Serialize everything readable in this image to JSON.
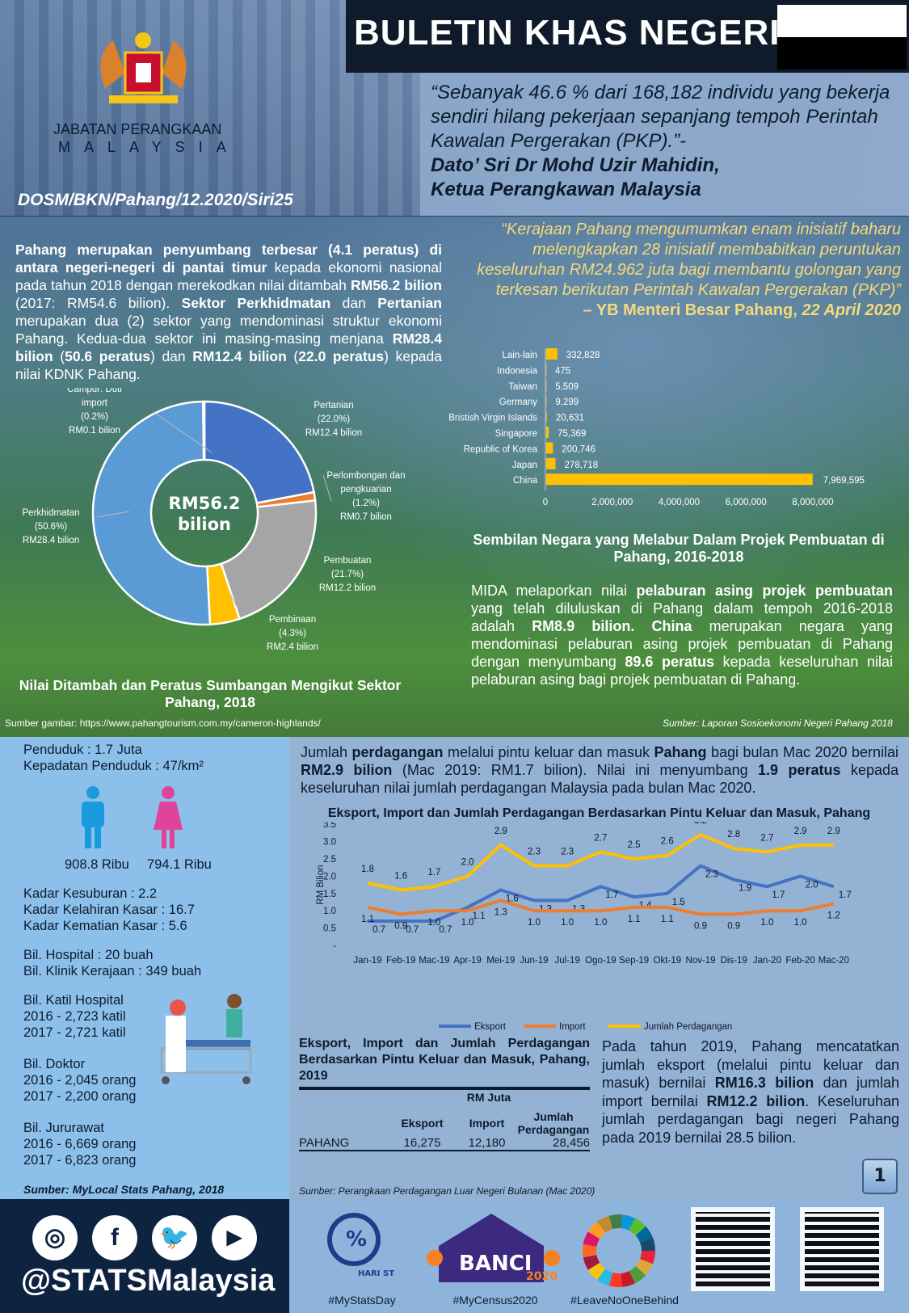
{
  "header": {
    "title": "BULETIN KHAS NEGERI",
    "org_line1": "JABATAN PERANGKAAN",
    "org_line2": "MALAYSIA",
    "code": "DOSM/BKN/Pahang/12.2020/Siri25",
    "quote": "“Sebanyak 46.6 % dari 168,182 individu yang bekerja sendiri hilang pekerjaan sepanjang tempoh Perintah Kawalan Pergerakan (PKP).”-",
    "quote_author": "Dato’ Sri Dr Mohd Uzir Mahidin,",
    "quote_role": "Ketua Perangkawan Malaysia"
  },
  "intro": [
    [
      "Pahang merupakan penyumbang terbesar (4.1 peratus) di antara negeri-negeri di pantai timur",
      1
    ],
    [
      " kepada ekonomi nasional pada tahun 2018 dengan merekodkan nilai ditambah ",
      0
    ],
    [
      "RM56.2 bilion",
      1
    ],
    [
      " (2017: RM54.6 bilion). ",
      0
    ],
    [
      "Sektor Perkhidmatan",
      1
    ],
    [
      " dan ",
      0
    ],
    [
      "Pertanian",
      1
    ],
    [
      " merupakan dua (2) sektor yang mendominasi struktur ekonomi Pahang. Kedua-dua sektor ini masing-masing menjana ",
      0
    ],
    [
      "RM28.4 bilion",
      1
    ],
    [
      " (",
      0
    ],
    [
      "50.6 peratus",
      1
    ],
    [
      ") dan ",
      0
    ],
    [
      "RM12.4 bilion",
      1
    ],
    [
      " (",
      0
    ],
    [
      "22.0 peratus",
      1
    ],
    [
      ") kepada nilai KDNK Pahang.",
      0
    ]
  ],
  "mb_quote": {
    "text": "“Kerajaan Pahang mengumumkan enam inisiatif baharu melengkapkan 28 inisiatif membabitkan peruntukan keseluruhan RM24.962 juta bagi membantu golongan yang terkesan berikutan Perintah Kawalan Pergerakan (PKP)”",
    "author": "– YB Menteri Besar Pahang,",
    "date": " 22 April 2020"
  },
  "mida": [
    [
      "MIDA melaporkan nilai ",
      0
    ],
    [
      "pelaburan asing projek pembuatan",
      1
    ],
    [
      " yang telah diluluskan di Pahang dalam tempoh 2016-2018 adalah ",
      0
    ],
    [
      "RM8.9 bilion. China",
      1
    ],
    [
      " merupakan negara yang mendominasi pelaburan asing projek pembuatan di Pahang dengan menyumbang ",
      0
    ],
    [
      "89.6 peratus",
      1
    ],
    [
      " kepada keseluruhan nilai pelaburan asing bagi projek pembuatan di Pahang.",
      0
    ]
  ],
  "sources": {
    "image": "Sumber gambar: https://www.pahangtourism.com.my/cameron-highlands/",
    "laporan": "Sumber: Laporan Sosioekonomi Negeri Pahang 2018",
    "mylocal": "Sumber: MyLocal Stats Pahang, 2018",
    "trade": "Sumber:  Perangkaan Perdagangan Luar Negeri Bulanan (Mac 2020)"
  },
  "stats": {
    "pop": "Penduduk : 1.7 Juta",
    "density": "Kepadatan Penduduk : 47/km²",
    "male": "908.8 Ribu",
    "female": "794.1 Ribu",
    "fert": [
      "Kadar Kesuburan : 2.2",
      "Kadar Kelahiran Kasar : 16.7",
      "Kadar Kematian Kasar : 5.6"
    ],
    "hosp": [
      "Bil. Hospital : 20 buah",
      "Bil. Klinik Kerajaan : 349 buah"
    ],
    "beds": [
      "Bil. Katil Hospital",
      "2016 - 2,723 katil",
      "2017 - 2,721 katil"
    ],
    "doctors": [
      "Bil. Doktor",
      "2016 - 2,045 orang",
      "2017 - 2,200 orang"
    ],
    "nurses": [
      "Bil. Jururawat",
      "2016 - 6,669 orang",
      "2017 - 6,823 orang"
    ]
  },
  "trade_text": [
    [
      "Jumlah ",
      0
    ],
    [
      "perdagangan",
      1
    ],
    [
      " melalui pintu keluar dan masuk ",
      0
    ],
    [
      "Pahang",
      1
    ],
    [
      " bagi bulan Mac 2020 bernilai ",
      0
    ],
    [
      "RM2.9 bilion",
      1
    ],
    [
      " (Mac 2019: RM1.7 bilion). Nilai ini menyumbang ",
      0
    ],
    [
      "1.9 peratus",
      1
    ],
    [
      " kepada keseluruhan nilai jumlah perdagangan Malaysia pada bulan Mac 2020.",
      0
    ]
  ],
  "trade_2019": [
    [
      "Pada tahun 2019, Pahang mencatatkan jumlah eksport (melalui pintu keluar dan masuk) bernilai ",
      0
    ],
    [
      "RM16.3 bilion",
      1
    ],
    [
      " dan jumlah import bernilai ",
      0
    ],
    [
      "RM12.2 bilion",
      1
    ],
    [
      ". Keseluruhan jumlah perdagangan bagi negeri Pahang pada 2019 bernilai 28.5 bilion.",
      0
    ]
  ],
  "table": {
    "title": "Eksport, Import dan Jumlah Perdagangan Berdasarkan Pintu Keluar dan Masuk, Pahang, 2019",
    "unit": "RM Juta",
    "headers": [
      "",
      "Eksport",
      "Import",
      "Jumlah Perdagangan"
    ],
    "rows": [
      [
        "PAHANG",
        "16,275",
        "12,180",
        "28,456"
      ]
    ]
  },
  "page_number": "1",
  "footer": {
    "handle": "@STATSMalaysia",
    "social": [
      "instagram-icon",
      "facebook-icon",
      "twitter-icon",
      "youtube-icon"
    ],
    "tags": [
      "#MyStatsDay",
      "#MyCensus2020",
      "#LeaveNoOneBehind"
    ],
    "logo_hari": "HARI STATISTIK NEGARA",
    "logo_banci": "BANCI",
    "logo_year": "2020"
  },
  "colors": {
    "blue": "#4472c4",
    "orange": "#ed7d31",
    "grey": "#a5a5a5",
    "yellow": "#ffc000",
    "lightblue": "#5b9bd5",
    "navy": "#0d2340"
  },
  "chart_data": [
    {
      "type": "pie",
      "title": "Nilai Ditambah dan Peratus Sumbangan Mengikut Sektor Pahang, 2018",
      "center_label": "RM56.2 bilion",
      "slices": [
        {
          "label": "Pertanian",
          "pct": "(22.0%)",
          "value_label": "RM12.4 bilion",
          "value": 22.0,
          "color": "#4472c4"
        },
        {
          "label": "Perlombongan dan pengkuarian",
          "pct": "(1.2%)",
          "value_label": "RM0.7 bilion",
          "value": 1.2,
          "color": "#ed7d31"
        },
        {
          "label": "Pembuatan",
          "pct": "(21.7%)",
          "value_label": "RM12.2 bilion",
          "value": 21.7,
          "color": "#a5a5a5"
        },
        {
          "label": "Pembinaan",
          "pct": "(4.3%)",
          "value_label": "RM2.4 bilion",
          "value": 4.3,
          "color": "#ffc000"
        },
        {
          "label": "Perkhidmatan",
          "pct": "(50.6%)",
          "value_label": "RM28.4 bilion",
          "value": 50.6,
          "color": "#5b9bd5"
        },
        {
          "label": "Campur: Duti import",
          "pct": "(0.2%)",
          "value_label": "RM0.1 bilion",
          "value": 0.2,
          "color": "#5b9bd5"
        }
      ]
    },
    {
      "type": "bar",
      "orientation": "horizontal",
      "title": "Sembilan Negara yang Melabur Dalam Projek Pembuatan di Pahang, 2016-2018",
      "categories": [
        "Lain-lain",
        "Indonesia",
        "Taiwan",
        "Germany",
        "Bristish Virgin Islands",
        "Singapore",
        "Republic of Korea",
        "Japan",
        "China"
      ],
      "values": [
        332828,
        475,
        5509,
        9299,
        20631,
        75369,
        200746,
        278718,
        7969595
      ],
      "value_labels": [
        "332,828",
        "475",
        "5,509",
        "9,299",
        "20,631",
        "75,369",
        "200,746",
        "278,718",
        "7,969,595"
      ],
      "xticks": [
        "0",
        "2,000,000",
        "4,000,000",
        "6,000,000",
        "8,000,000"
      ],
      "xlim": [
        0,
        8000000
      ],
      "color": "#ffc000"
    },
    {
      "type": "line",
      "title": "Eksport, Import dan Jumlah Perdagangan Berdasarkan Pintu Keluar dan Masuk, Pahang",
      "ylabel": "RM Bilion",
      "yticks": [
        "-",
        "0.5",
        "1.0",
        "1.5",
        "2.0",
        "2.5",
        "3.0",
        "3.5"
      ],
      "ylim": [
        0,
        3.5
      ],
      "legend": "bottom",
      "categories": [
        "Jan-19",
        "Feb-19",
        "Mac-19",
        "Apr-19",
        "Mei-19",
        "Jun-19",
        "Jul-19",
        "Ogo-19",
        "Sep-19",
        "Okt-19",
        "Nov-19",
        "Dis-19",
        "Jan-20",
        "Feb-20",
        "Mac-20"
      ],
      "series": [
        {
          "name": "Eksport",
          "color": "#4472c4",
          "values": [
            0.7,
            0.7,
            0.7,
            1.1,
            1.6,
            1.3,
            1.3,
            1.7,
            1.4,
            1.5,
            2.3,
            1.9,
            1.7,
            2.0,
            1.7
          ]
        },
        {
          "name": "Import",
          "color": "#ed7d31",
          "values": [
            1.1,
            0.9,
            1.0,
            1.0,
            1.3,
            1.0,
            1.0,
            1.0,
            1.1,
            1.1,
            0.9,
            0.9,
            1.0,
            1.0,
            1.2
          ]
        },
        {
          "name": "Jumlah Perdagangan",
          "color": "#ffc000",
          "values": [
            1.8,
            1.6,
            1.7,
            2.0,
            2.9,
            2.3,
            2.3,
            2.7,
            2.5,
            2.6,
            3.2,
            2.8,
            2.7,
            2.9,
            2.9
          ]
        }
      ]
    }
  ]
}
